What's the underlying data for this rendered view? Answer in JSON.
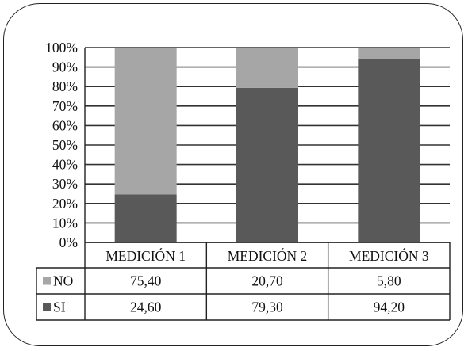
{
  "chart_data": {
    "type": "bar",
    "stacked": true,
    "percent": true,
    "categories": [
      "MEDICIÓN 1",
      "MEDICIÓN 2",
      "MEDICIÓN 3"
    ],
    "series": [
      {
        "name": "NO",
        "values": [
          75.4,
          20.7,
          5.8
        ],
        "labels": [
          "75,40",
          "20,70",
          "5,80"
        ],
        "color": "#a6a6a6"
      },
      {
        "name": "SI",
        "values": [
          24.6,
          79.3,
          94.2
        ],
        "labels": [
          "24,60",
          "79,30",
          "94,20"
        ],
        "color": "#595959"
      }
    ],
    "yticks": [
      "0%",
      "10%",
      "20%",
      "30%",
      "40%",
      "50%",
      "60%",
      "70%",
      "80%",
      "90%",
      "100%"
    ],
    "ylim": [
      0,
      100
    ],
    "grid": true,
    "legend": "data-table"
  }
}
